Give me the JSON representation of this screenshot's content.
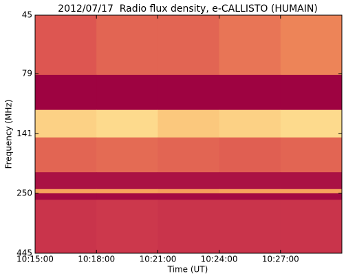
{
  "chart_data": {
    "type": "heatmap",
    "title": "2012/07/17  Radio flux density, e-CALLISTO (HUMAIN)",
    "x_label": "Time (UT)",
    "y_label": "Frequency (MHz)",
    "xlim": [
      "10:15:00",
      "10:30:00"
    ],
    "xticks": [
      "10:15:00",
      "10:18:00",
      "10:21:00",
      "10:24:00",
      "10:27:00"
    ],
    "ylim": [
      45,
      445
    ],
    "yticks": [
      45,
      79,
      141,
      250,
      445
    ],
    "y_scale": "log",
    "y_direction": "down",
    "bins": [
      45,
      80,
      112,
      146,
      204,
      240,
      250,
      266,
      445
    ],
    "intensity": [
      [
        0.45,
        0.5,
        0.5,
        0.55,
        0.6
      ],
      [
        0.02,
        0.02,
        0.02,
        0.02,
        0.02
      ],
      [
        0.8,
        0.82,
        0.78,
        0.8,
        0.82
      ],
      [
        0.5,
        0.52,
        0.5,
        0.48,
        0.5
      ],
      [
        0.1,
        0.1,
        0.1,
        0.1,
        0.1
      ],
      [
        0.7,
        0.7,
        0.68,
        0.7,
        0.7
      ],
      [
        0.05,
        0.05,
        0.05,
        0.05,
        0.05
      ],
      [
        0.3,
        0.32,
        0.3,
        0.3,
        0.3
      ]
    ],
    "colormap": [
      [
        0,
        "#9b0040"
      ],
      [
        0.4,
        "#d8464f"
      ],
      [
        0.7,
        "#f7a35c"
      ],
      [
        0.85,
        "#fee899"
      ],
      [
        1,
        "#9fd6c0"
      ]
    ]
  }
}
